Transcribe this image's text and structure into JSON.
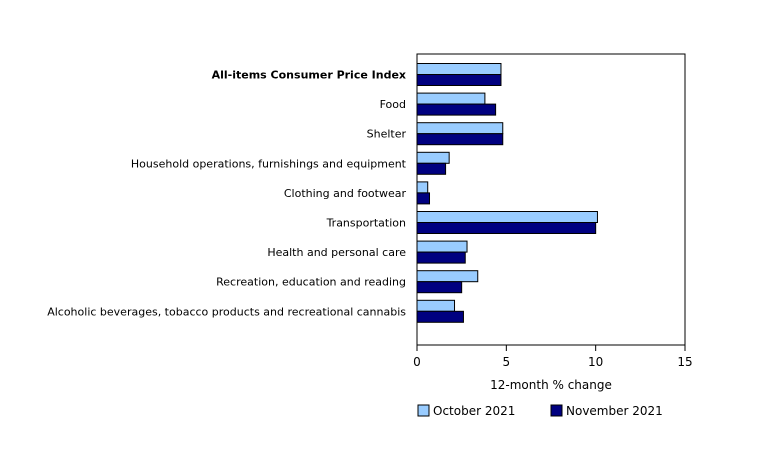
{
  "chart_data": {
    "type": "bar",
    "orientation": "horizontal",
    "title": "",
    "xlabel": "12-month % change",
    "ylabel": "",
    "xlim": [
      0,
      15
    ],
    "xticks": [
      0,
      5,
      10,
      15
    ],
    "grid": false,
    "legend_position": "bottom",
    "categories": [
      "All-items Consumer Price Index",
      "Food",
      "Shelter",
      "Household operations, furnishings and equipment",
      "Clothing and footwear",
      "Transportation",
      "Health and personal care",
      "Recreation, education and reading",
      "Alcoholic beverages, tobacco products and recreational cannabis"
    ],
    "bold_categories": [
      "All-items Consumer Price Index"
    ],
    "series": [
      {
        "name": "October 2021",
        "color": "#99ccff",
        "values": [
          4.7,
          3.8,
          4.8,
          1.8,
          0.6,
          10.1,
          2.8,
          3.4,
          2.1
        ]
      },
      {
        "name": "November 2021",
        "color": "#000080",
        "values": [
          4.7,
          4.4,
          4.8,
          1.6,
          0.7,
          10.0,
          2.7,
          2.5,
          2.6
        ]
      }
    ]
  }
}
